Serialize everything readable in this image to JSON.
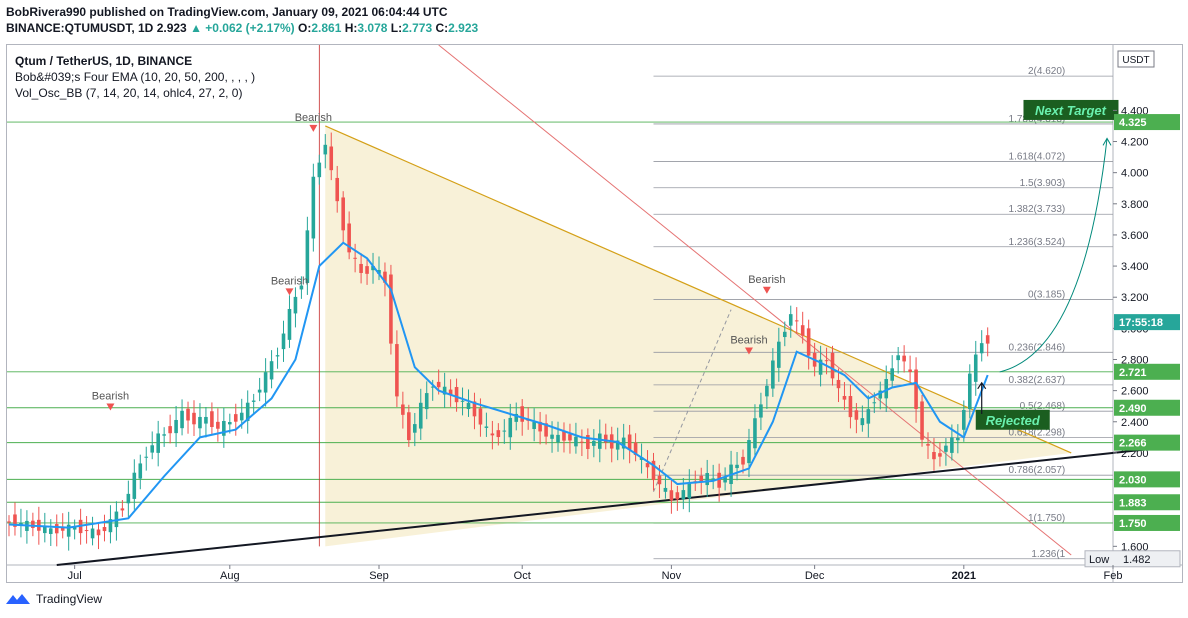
{
  "header": {
    "line1": "BobRivera990 published on TradingView.com, January 09, 2021 06:04:44 UTC",
    "symbol": "BINANCE:QTUMUSDT, 1D",
    "last": "2.923",
    "change": "▲ +0.062 (+2.17%)",
    "o_label": "O:",
    "o": "2.861",
    "h_label": "H:",
    "h": "3.078",
    "l_label": "L:",
    "l": "2.773",
    "c_label": "C:",
    "c": "2.923"
  },
  "legend": {
    "title": "Qtum / TetherUS, 1D, BINANCE",
    "ema": "Bob&#039;s Four EMA (10, 20, 50, 200, , , , )",
    "osc": "Vol_Osc_BB (7, 14, 20, 14, ohlc4, 27, 2, 0)"
  },
  "footer": {
    "brand": "TradingView"
  },
  "colors": {
    "up": "#26a69a",
    "down": "#ef5350",
    "ema": "#2196f3",
    "green": "#4caf50",
    "triangle": "#f5eccb",
    "fib": "#787b86"
  },
  "chart_data": {
    "type": "candlestick",
    "currency": "USDT",
    "ylim": [
      1.48,
      4.82
    ],
    "y_ticks": [
      "4.400",
      "4.200",
      "4.000",
      "3.800",
      "3.600",
      "3.400",
      "3.200",
      "3.000",
      "2.800",
      "2.600",
      "2.400",
      "2.200",
      "1.600"
    ],
    "x_ticks": [
      "Jul",
      "Aug",
      "Sep",
      "Oct",
      "Nov",
      "Dec",
      "2021",
      "Feb"
    ],
    "price_labels": [
      {
        "text": "4.325",
        "value": 4.325,
        "kind": "green"
      },
      {
        "text": "17:55:18",
        "value": 3.04,
        "kind": "teal"
      },
      {
        "text": "2.721",
        "value": 2.721,
        "kind": "green"
      },
      {
        "text": "2.490",
        "value": 2.49,
        "kind": "green"
      },
      {
        "text": "2.266",
        "value": 2.266,
        "kind": "green"
      },
      {
        "text": "2.030",
        "value": 2.03,
        "kind": "green"
      },
      {
        "text": "1.883",
        "value": 1.883,
        "kind": "green"
      },
      {
        "text": "1.750",
        "value": 1.75,
        "kind": "green"
      }
    ],
    "currency_label": "USDT",
    "low_label": "Low",
    "low_value": "1.482",
    "fib_labels": [
      {
        "text": "2(4.620)",
        "value": 4.62
      },
      {
        "text": "1.786(4.313)",
        "value": 4.313
      },
      {
        "text": "1.618(4.072)",
        "value": 4.072
      },
      {
        "text": "1.5(3.903)",
        "value": 3.903
      },
      {
        "text": "1.382(3.733)",
        "value": 3.733
      },
      {
        "text": "1.236(3.524)",
        "value": 3.524
      },
      {
        "text": "0(3.185)",
        "value": 3.185
      },
      {
        "text": "0.236(2.846)",
        "value": 2.846
      },
      {
        "text": "0.382(2.637)",
        "value": 2.637
      },
      {
        "text": "0.5(2.468)",
        "value": 2.468
      },
      {
        "text": "0.618(2.298)",
        "value": 2.298
      },
      {
        "text": "0.786(2.057)",
        "value": 2.057
      },
      {
        "text": "1(1.750)",
        "value": 1.75
      },
      {
        "text": "1.236(1",
        "value": 1.52
      }
    ],
    "annotations": {
      "bearish": "Bearish",
      "next_target": "Next Target",
      "rejected": "Rejected"
    },
    "path_points": [
      [
        0,
        1.76
      ],
      [
        4,
        1.74
      ],
      [
        8,
        1.7
      ],
      [
        12,
        1.72
      ],
      [
        16,
        1.68
      ],
      [
        18,
        1.76
      ],
      [
        20,
        1.85
      ],
      [
        22,
        2.05
      ],
      [
        24,
        2.2
      ],
      [
        26,
        2.3
      ],
      [
        28,
        2.35
      ],
      [
        30,
        2.45
      ],
      [
        32,
        2.4
      ],
      [
        34,
        2.42
      ],
      [
        36,
        2.36
      ],
      [
        38,
        2.4
      ],
      [
        40,
        2.45
      ],
      [
        42,
        2.55
      ],
      [
        44,
        2.7
      ],
      [
        46,
        2.85
      ],
      [
        48,
        3.1
      ],
      [
        50,
        3.3
      ],
      [
        52,
        3.95
      ],
      [
        54,
        4.2
      ],
      [
        56,
        3.8
      ],
      [
        58,
        3.5
      ],
      [
        60,
        3.35
      ],
      [
        62,
        3.4
      ],
      [
        64,
        3.3
      ],
      [
        66,
        2.55
      ],
      [
        68,
        2.3
      ],
      [
        70,
        2.5
      ],
      [
        72,
        2.65
      ],
      [
        74,
        2.6
      ],
      [
        76,
        2.55
      ],
      [
        78,
        2.5
      ],
      [
        80,
        2.4
      ],
      [
        82,
        2.3
      ],
      [
        84,
        2.35
      ],
      [
        86,
        2.45
      ],
      [
        88,
        2.4
      ],
      [
        90,
        2.35
      ],
      [
        92,
        2.3
      ],
      [
        94,
        2.3
      ],
      [
        96,
        2.28
      ],
      [
        98,
        2.25
      ],
      [
        100,
        2.3
      ],
      [
        102,
        2.25
      ],
      [
        104,
        2.28
      ],
      [
        106,
        2.2
      ],
      [
        108,
        2.1
      ],
      [
        110,
        2.0
      ],
      [
        112,
        1.9
      ],
      [
        114,
        1.95
      ],
      [
        116,
        2.02
      ],
      [
        118,
        2.05
      ],
      [
        120,
        2.0
      ],
      [
        122,
        2.1
      ],
      [
        124,
        2.15
      ],
      [
        126,
        2.4
      ],
      [
        128,
        2.65
      ],
      [
        130,
        2.9
      ],
      [
        132,
        3.1
      ],
      [
        134,
        2.95
      ],
      [
        136,
        2.75
      ],
      [
        138,
        2.8
      ],
      [
        140,
        2.6
      ],
      [
        142,
        2.45
      ],
      [
        144,
        2.4
      ],
      [
        146,
        2.55
      ],
      [
        148,
        2.65
      ],
      [
        150,
        2.85
      ],
      [
        152,
        2.7
      ],
      [
        154,
        2.3
      ],
      [
        156,
        2.15
      ],
      [
        158,
        2.25
      ],
      [
        160,
        2.3
      ],
      [
        162,
        2.7
      ],
      [
        164,
        2.92
      ]
    ],
    "ema_points": [
      [
        0,
        1.74
      ],
      [
        10,
        1.72
      ],
      [
        20,
        1.78
      ],
      [
        26,
        2.05
      ],
      [
        32,
        2.3
      ],
      [
        38,
        2.35
      ],
      [
        44,
        2.55
      ],
      [
        48,
        2.8
      ],
      [
        52,
        3.4
      ],
      [
        56,
        3.55
      ],
      [
        60,
        3.45
      ],
      [
        64,
        3.25
      ],
      [
        68,
        2.75
      ],
      [
        72,
        2.6
      ],
      [
        78,
        2.52
      ],
      [
        84,
        2.45
      ],
      [
        90,
        2.38
      ],
      [
        96,
        2.3
      ],
      [
        102,
        2.27
      ],
      [
        108,
        2.12
      ],
      [
        112,
        2.0
      ],
      [
        118,
        2.02
      ],
      [
        124,
        2.1
      ],
      [
        128,
        2.4
      ],
      [
        132,
        2.85
      ],
      [
        136,
        2.78
      ],
      [
        140,
        2.7
      ],
      [
        144,
        2.55
      ],
      [
        148,
        2.62
      ],
      [
        152,
        2.65
      ],
      [
        156,
        2.4
      ],
      [
        160,
        2.3
      ],
      [
        162,
        2.5
      ],
      [
        164,
        2.7
      ]
    ]
  }
}
